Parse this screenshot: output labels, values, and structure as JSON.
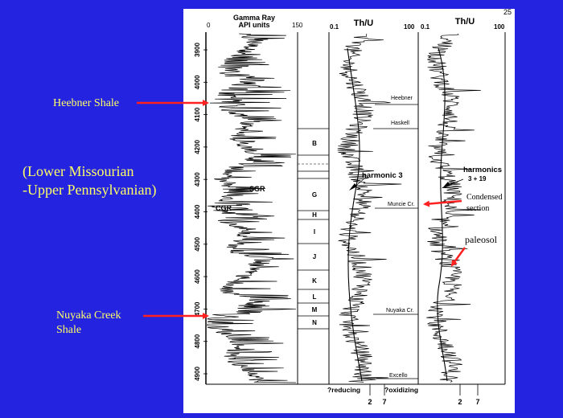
{
  "slide": {
    "label_heebner": "Heebner Shale",
    "label_age_line1": "(Lower Missourian",
    "label_age_line2": "-Upper Pennsylvanian)",
    "label_nuyaka_line1": "Nuyaka Creek",
    "label_nuyaka_line2": "Shale",
    "accent_yellow": "#ffff66",
    "arrow_red": "#ff2020",
    "background": "#2323e0"
  },
  "figure": {
    "page_number": "25",
    "gamma_title_line1": "Gamma Ray",
    "gamma_title_line2": "API units",
    "gamma_scale_min": "0",
    "gamma_scale_max": "150",
    "thu1_title": "Th/U",
    "thu1_scale_min": "0.1",
    "thu1_scale_max": "100",
    "thu2_title": "Th/U",
    "thu2_scale_min": "0.1",
    "thu2_scale_max": "100",
    "depths": [
      "3900",
      "4000",
      "4100",
      "4200",
      "4300",
      "4400",
      "4500",
      "4600",
      "4700",
      "4800",
      "4900"
    ],
    "zones": [
      "B",
      "G",
      "H",
      "I",
      "J",
      "K",
      "L",
      "M",
      "N"
    ],
    "curve_labels": {
      "sgr": "SGR",
      "cgr": "CGR"
    },
    "log_annotations": [
      "Heebner",
      "Haskell",
      "Muncie Cr.",
      "Nuyaka Cr.",
      "Excello"
    ],
    "harmonic3": "harmonic 3",
    "harmonics_line1": "harmonics",
    "harmonics_line2": "3 + 19",
    "condensed_line1": "Condensed",
    "condensed_line2": "section",
    "paleosol": "paleosol",
    "bottom_reducing": "?reducing",
    "bottom_oxidizing": "?oxidizing",
    "bottom_ticks_1": [
      "2",
      "7"
    ],
    "bottom_ticks_2": [
      "2",
      "7"
    ]
  }
}
